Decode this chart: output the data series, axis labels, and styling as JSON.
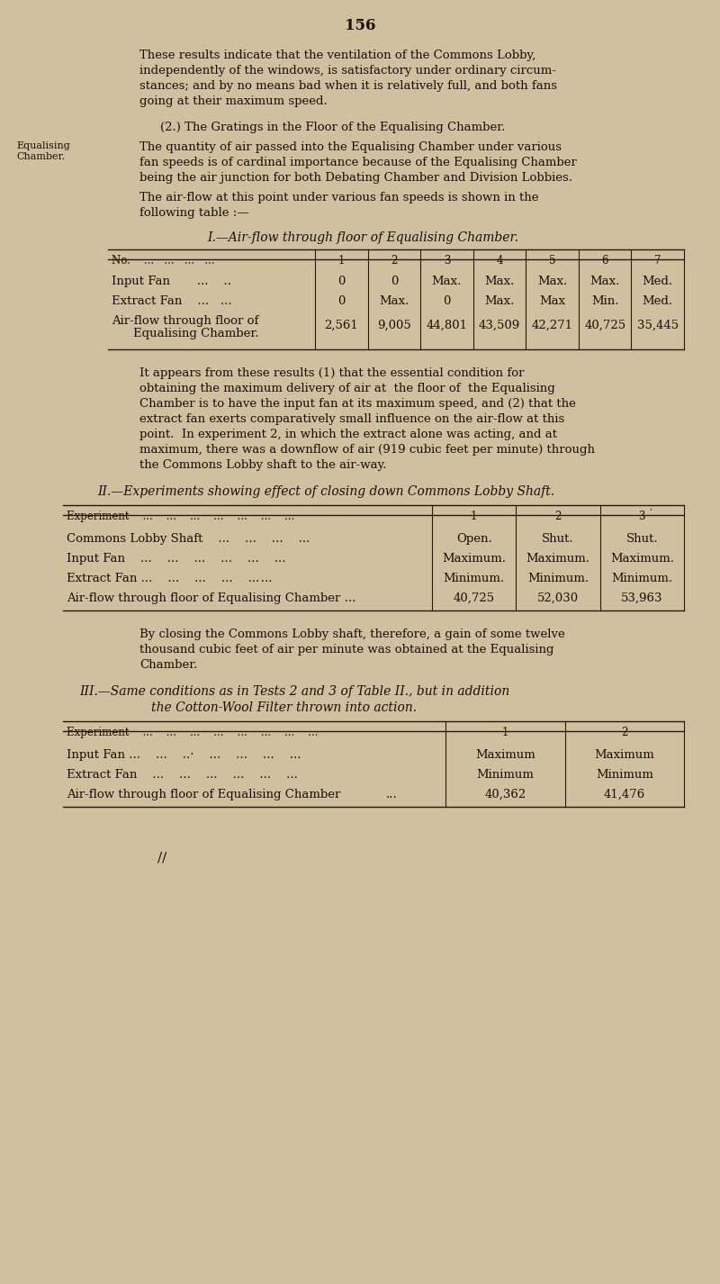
{
  "bg_color": "#cfc0a0",
  "page_number": "156",
  "text_color": "#1a1008",
  "font_family": "serif",
  "table1_header_cols": [
    "1",
    "2",
    "3",
    "4",
    "5",
    "6",
    "7"
  ],
  "table1_row1_vals": [
    "0",
    "0",
    "Max.",
    "Max.",
    "Max.",
    "Max.",
    "Med."
  ],
  "table1_row2_vals": [
    "0",
    "Max.",
    "0",
    "Max.",
    "Max",
    "Min.",
    "Med."
  ],
  "table1_row3_vals": [
    "2,561",
    "9,005",
    "44,801",
    "43,509",
    "42,271",
    "40,725",
    "35,445"
  ],
  "table2_header_cols": [
    "1",
    "2",
    "3"
  ],
  "table2_row1_vals": [
    "Open.",
    "Shut.",
    "Shut."
  ],
  "table2_row2_vals": [
    "Maximum.",
    "Maximum.",
    "Maximum."
  ],
  "table2_row3_vals": [
    "Minimum.",
    "Minimum.",
    "Minimum."
  ],
  "table2_row4_vals": [
    "40,725",
    "52,030",
    "53,963"
  ],
  "table3_header_cols": [
    "1",
    "2"
  ],
  "table3_row1_vals": [
    "Maximum",
    "Maximum"
  ],
  "table3_row2_vals": [
    "Minimum",
    "Minimum"
  ],
  "table3_row3_vals": [
    "40,362",
    "41,476"
  ]
}
